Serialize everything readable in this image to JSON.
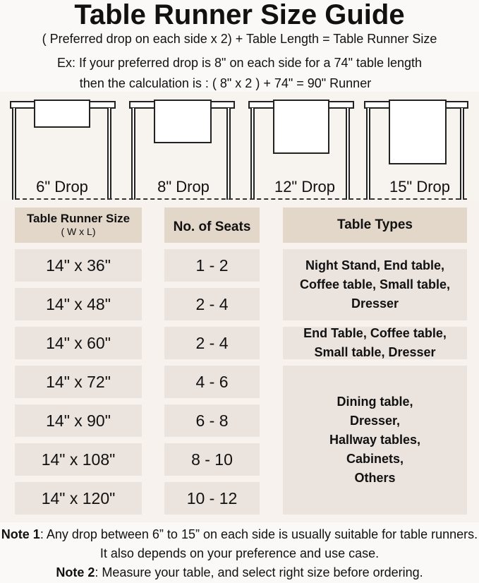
{
  "title": "Table Runner Size Guide",
  "formula": "( Preferred drop on each side x 2) + Table Length = Table Runner Size",
  "example_line1": "Ex: If your preferred drop is 8\" on each side for a 74\" table length",
  "example_line2": "then the calculation is : ( 8\" x 2 ) + 74\" = 90\" Runner",
  "drops": [
    "6\" Drop",
    "8\" Drop",
    "12\" Drop",
    "15\" Drop"
  ],
  "headers": {
    "size": "Table Runner Size",
    "size_sub": "( W x L)",
    "seats": "No. of Seats",
    "types": "Table Types"
  },
  "rows": [
    {
      "size": "14\" x 36\"",
      "seats": "1 - 2"
    },
    {
      "size": "14\" x 48\"",
      "seats": "2 - 4"
    },
    {
      "size": "14\" x 60\"",
      "seats": "2 - 4"
    },
    {
      "size": "14\" x 72\"",
      "seats": "4 - 6"
    },
    {
      "size": "14\" x 90\"",
      "seats": "6 - 8"
    },
    {
      "size": "14\" x 108\"",
      "seats": "8 - 10"
    },
    {
      "size": "14\" x 120\"",
      "seats": "10 - 12"
    }
  ],
  "table_types": [
    "Night Stand, End table, Coffee table, Small table, Dresser",
    "End Table, Coffee table, Small table, Dresser",
    "Dining table, Dresser, Hallway tables, Cabinets, Others"
  ],
  "notes": [
    {
      "label": "Note 1",
      "text": ": Any drop between 6” to 15” on each side is usually suitable for table runners. It also depends on your preference and use case."
    },
    {
      "label": "Note 2",
      "text": ": Measure your table, and select right size before ordering."
    }
  ],
  "colors": {
    "header_cell": "#e3d7c9",
    "body_cell": "#ebe3dd",
    "background": "#fbf9f7"
  }
}
